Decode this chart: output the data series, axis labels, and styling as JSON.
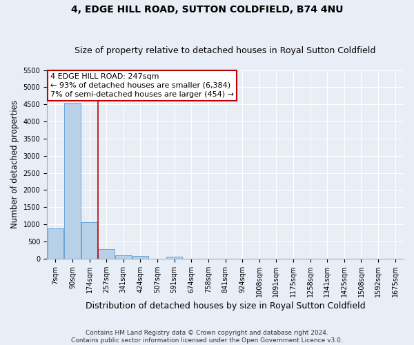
{
  "title": "4, EDGE HILL ROAD, SUTTON COLDFIELD, B74 4NU",
  "subtitle": "Size of property relative to detached houses in Royal Sutton Coldfield",
  "xlabel": "Distribution of detached houses by size in Royal Sutton Coldfield",
  "ylabel": "Number of detached properties",
  "footer_line1": "Contains HM Land Registry data © Crown copyright and database right 2024.",
  "footer_line2": "Contains public sector information licensed under the Open Government Licence v3.0.",
  "bar_labels": [
    "7sqm",
    "90sqm",
    "174sqm",
    "257sqm",
    "341sqm",
    "424sqm",
    "507sqm",
    "591sqm",
    "674sqm",
    "758sqm",
    "841sqm",
    "924sqm",
    "1008sqm",
    "1091sqm",
    "1175sqm",
    "1258sqm",
    "1341sqm",
    "1425sqm",
    "1508sqm",
    "1592sqm",
    "1675sqm"
  ],
  "bar_values": [
    880,
    4550,
    1060,
    280,
    90,
    80,
    0,
    60,
    0,
    0,
    0,
    0,
    0,
    0,
    0,
    0,
    0,
    0,
    0,
    0,
    0
  ],
  "bar_color": "#b8d0e8",
  "bar_edge_color": "#5b9bd5",
  "vline_x_index": 2,
  "vline_color": "#c00000",
  "annotation_line1": "4 EDGE HILL ROAD: 247sqm",
  "annotation_line2": "← 93% of detached houses are smaller (6,384)",
  "annotation_line3": "7% of semi-detached houses are larger (454) →",
  "annotation_box_color": "#c00000",
  "annotation_bg_color": "#ffffff",
  "ylim_max": 5500,
  "yticks": [
    0,
    500,
    1000,
    1500,
    2000,
    2500,
    3000,
    3500,
    4000,
    4500,
    5000,
    5500
  ],
  "bg_color": "#e8eef5",
  "plot_bg_color": "#e8eef5",
  "grid_color": "#ffffff",
  "title_fontsize": 10,
  "subtitle_fontsize": 9,
  "ylabel_fontsize": 8.5,
  "xlabel_fontsize": 9,
  "tick_fontsize": 7,
  "footer_fontsize": 6.5,
  "annotation_fontsize": 8
}
